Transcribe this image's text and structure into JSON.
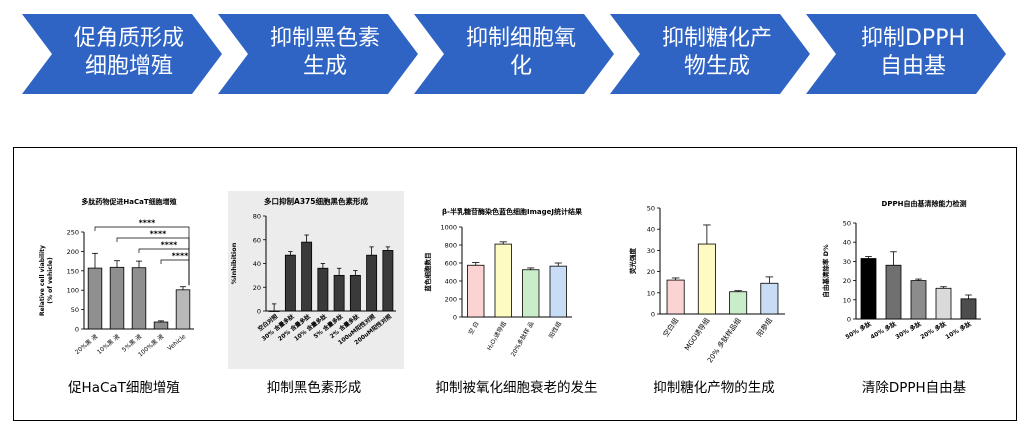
{
  "flow": {
    "steps": [
      {
        "line1": "促角质形成",
        "line2": "细胞增殖"
      },
      {
        "line1": "抑制黑色素",
        "line2": "生成"
      },
      {
        "line1": "抑制细胞氧",
        "line2": "化"
      },
      {
        "line1": "抑制糖化产",
        "line2": "物生成"
      },
      {
        "line1": "抑制DPPH",
        "line2": "自由基"
      }
    ],
    "color": "#2f64c4"
  },
  "chart_data": [
    {
      "type": "bar",
      "title": "多肽药物促进HaCaT细胞增殖",
      "ylabel": "Relative cell viability\n(% of vehicle)",
      "ylim": [
        0,
        250
      ],
      "yticks": [
        0,
        50,
        100,
        150,
        200,
        250
      ],
      "categories": [
        "20%黑 液",
        "10%黑 液",
        "5%黑 液",
        "100%黑 液",
        "Vehicle"
      ],
      "values": [
        157,
        159,
        158,
        18,
        101
      ],
      "errors": [
        38,
        17,
        17,
        3,
        8
      ],
      "colors": [
        "#8f8f8f",
        "#8f8f8f",
        "#8f8f8f",
        "#8f8f8f",
        "#b8b8b8"
      ],
      "significance": [
        "****",
        "****",
        "****",
        "****"
      ],
      "caption": "促HaCaT细胞增殖"
    },
    {
      "type": "bar",
      "title": "多口抑制A375细胞黑色素形成",
      "ylabel": "%Inhibition",
      "ylim": [
        0,
        80
      ],
      "yticks": [
        0,
        20,
        40,
        60,
        80
      ],
      "categories": [
        "空白对照",
        "30% 含量多肽",
        "20% 含量多肽",
        "10% 含量多肽",
        "5% 含量多肽",
        "2% 含量多肽",
        "100uM阳性对照",
        "200uM阳性对照"
      ],
      "values": [
        0,
        47,
        58,
        36,
        30,
        30,
        47,
        51
      ],
      "errors": [
        6,
        3,
        6,
        4,
        6,
        4,
        7,
        3
      ],
      "caption": "抑制黑色素形成"
    },
    {
      "type": "bar",
      "title": "β-半乳糖苷酶染色蓝色细胞ImageJ统计结果",
      "ylabel": "蓝色细胞数目",
      "ylim": [
        0,
        1000
      ],
      "yticks": [
        0,
        200,
        400,
        600,
        800,
        1000
      ],
      "categories": [
        "空 白",
        "H₂O₂诱导组",
        "20%多肽样 品",
        "阳性组"
      ],
      "values": [
        575,
        810,
        525,
        565
      ],
      "errors": [
        30,
        25,
        20,
        35
      ],
      "colors": [
        "#fbd3d3",
        "#fdfbc2",
        "#c9ecc9",
        "#c8dcf5"
      ],
      "caption": "抑制被氧化细胞衰老的发生"
    },
    {
      "type": "bar",
      "title": "",
      "ylabel": "荧光强度",
      "ylim": [
        0,
        50
      ],
      "yticks": [
        0,
        10,
        20,
        30,
        40,
        50
      ],
      "categories": [
        "空白组",
        "MGO诱导组",
        "20% 多肽样品组",
        "阳参组"
      ],
      "values": [
        16,
        33,
        10.5,
        14.5
      ],
      "errors": [
        1,
        9,
        0.5,
        3
      ],
      "colors": [
        "#fbd3d3",
        "#fdfbc2",
        "#c9ecc9",
        "#c8dcf5"
      ],
      "caption": "抑制糖化产物的生成"
    },
    {
      "type": "bar",
      "title": "DPPH自由基清除能力检测",
      "ylabel": "自由基清除率 D%",
      "ylim": [
        0,
        50
      ],
      "yticks": [
        0,
        10,
        20,
        30,
        40,
        50
      ],
      "categories": [
        "50% 多肽",
        "40% 多肽",
        "30% 多肽",
        "20% 多肽",
        "10% 多肽"
      ],
      "values": [
        31.5,
        28,
        20,
        16,
        10.5
      ],
      "errors": [
        1,
        7,
        0.8,
        0.8,
        2
      ],
      "colors": [
        "#000000",
        "#707070",
        "#8c8c8c",
        "#dadada",
        "#4d4d4d"
      ],
      "caption": "清除DPPH自由基"
    }
  ]
}
